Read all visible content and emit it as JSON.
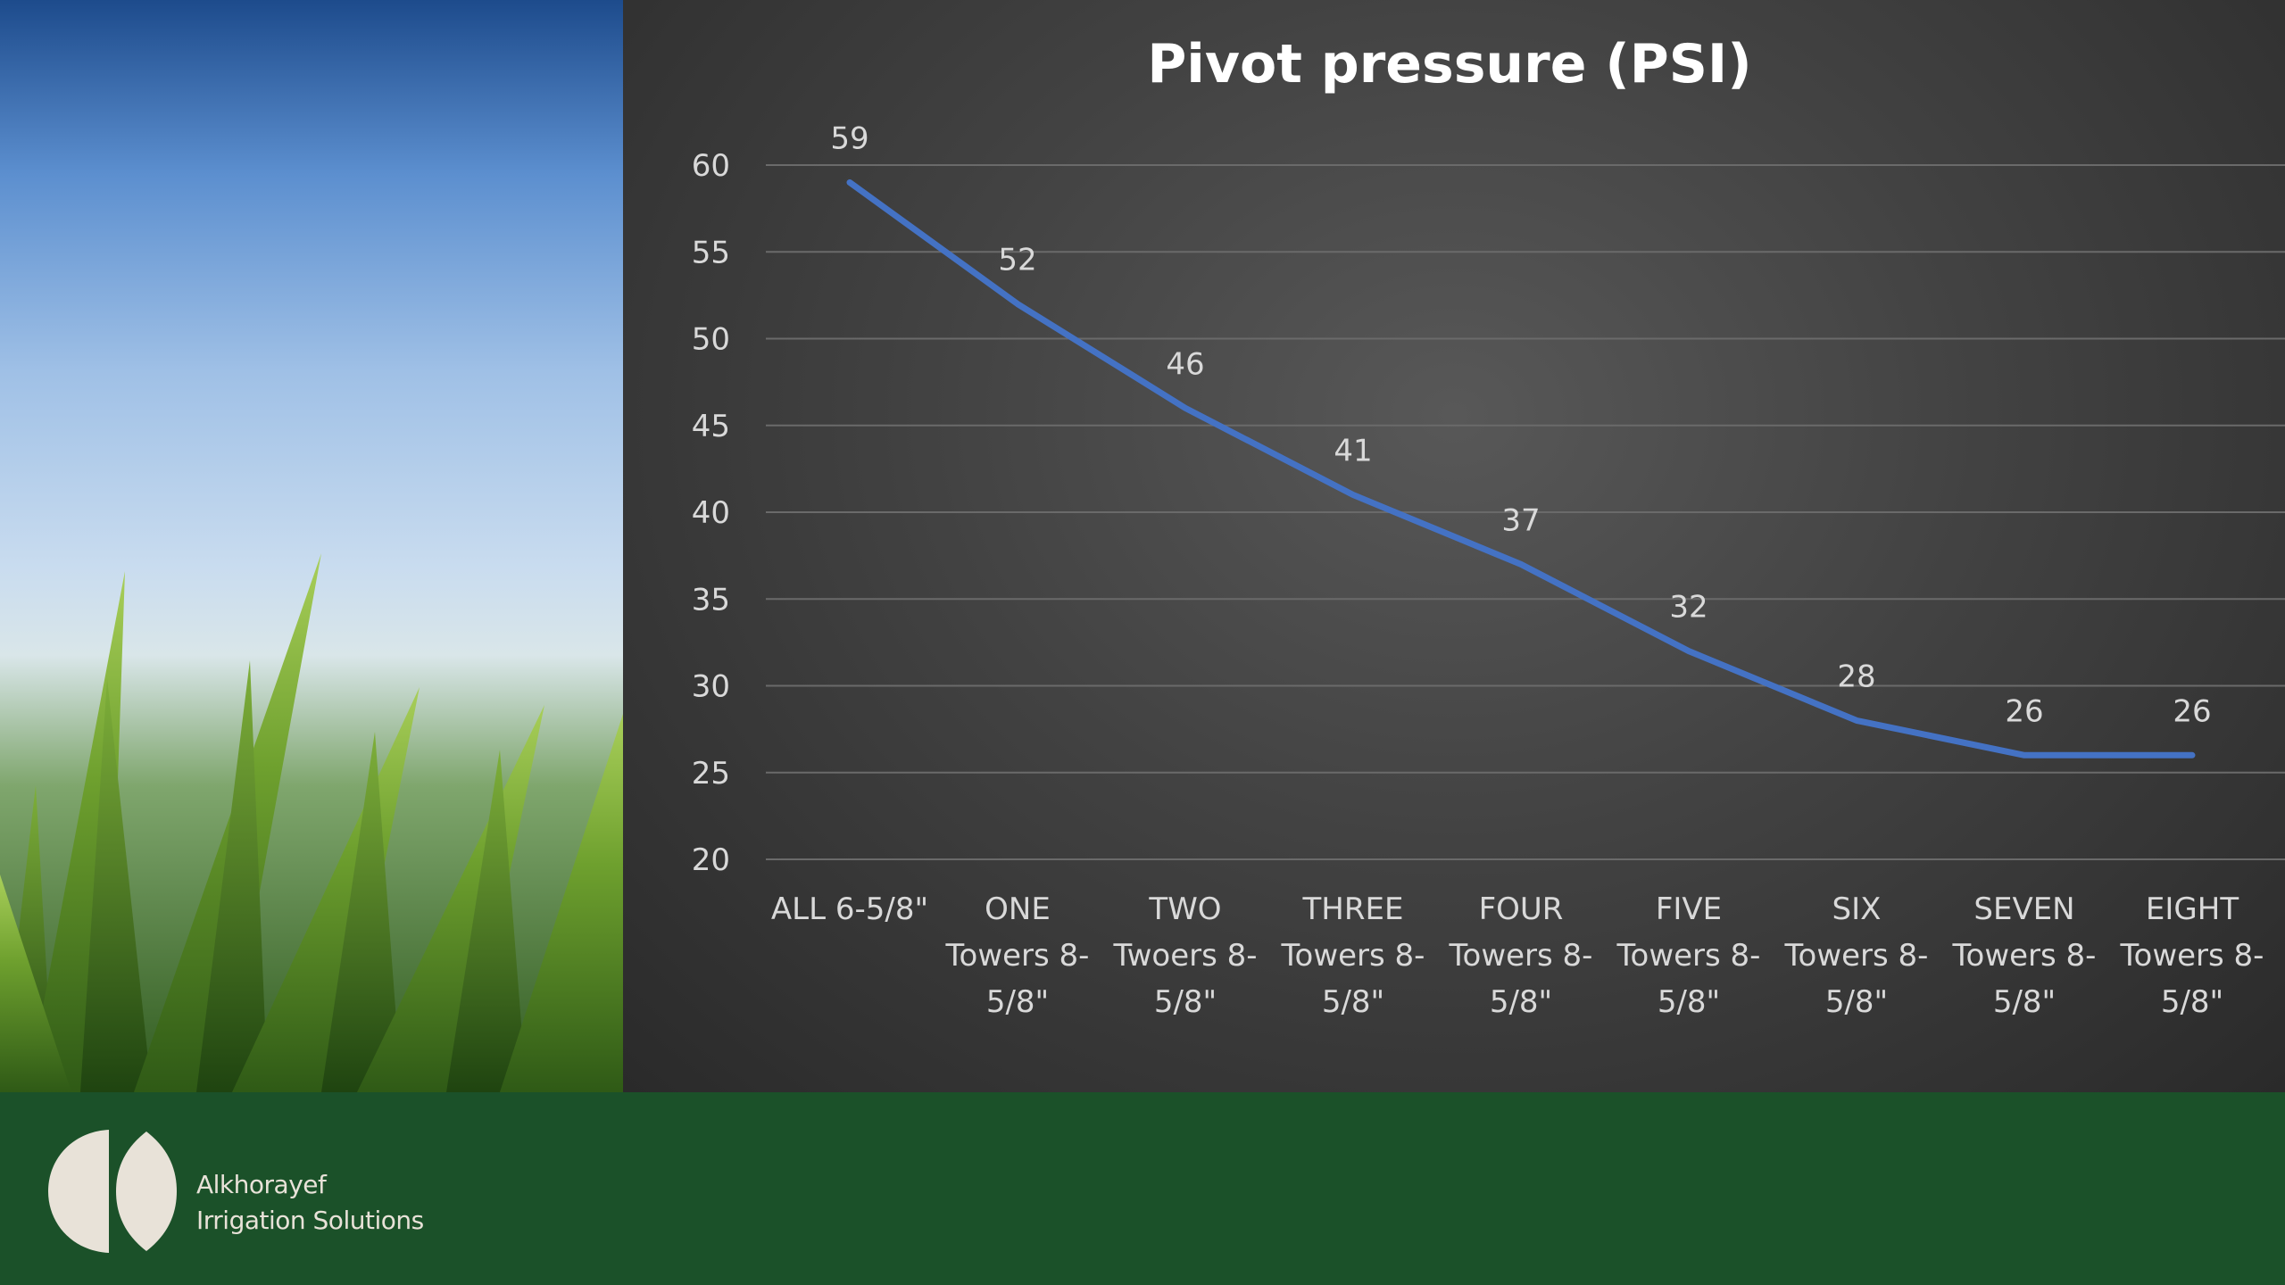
{
  "slide": {
    "background_color": "#1b5129",
    "photo": {
      "description_icon": "grass-photo"
    }
  },
  "footer": {
    "brand_line1": "Alkhorayef",
    "brand_line2": "Irrigation Solutions",
    "brand_color": "#e8e2d8"
  },
  "chart_data": {
    "type": "line",
    "title": "Pivot pressure (PSI)",
    "categories": [
      [
        "ALL 6-5/8\""
      ],
      [
        "ONE",
        "Towers 8-",
        "5/8\""
      ],
      [
        "TWO",
        "Twoers 8-",
        "5/8\""
      ],
      [
        "THREE",
        "Towers 8-",
        "5/8\""
      ],
      [
        "FOUR",
        "Towers 8-",
        "5/8\""
      ],
      [
        "FIVE",
        "Towers 8-",
        "5/8\""
      ],
      [
        "SIX",
        "Towers 8-",
        "5/8\""
      ],
      [
        "SEVEN",
        "Towers 8-",
        "5/8\""
      ],
      [
        "EIGHT",
        "Towers 8-",
        "5/8\""
      ]
    ],
    "series": [
      {
        "name": "Pivot pressure (PSI)",
        "values": [
          59,
          52,
          46,
          41,
          37,
          32,
          28,
          26,
          26
        ],
        "color": "#4472c4"
      }
    ],
    "yticks": [
      20,
      25,
      30,
      35,
      40,
      45,
      50,
      55,
      60
    ],
    "ylim": [
      20,
      60
    ],
    "grid": true,
    "data_labels": true,
    "xlabel": "",
    "ylabel": ""
  }
}
